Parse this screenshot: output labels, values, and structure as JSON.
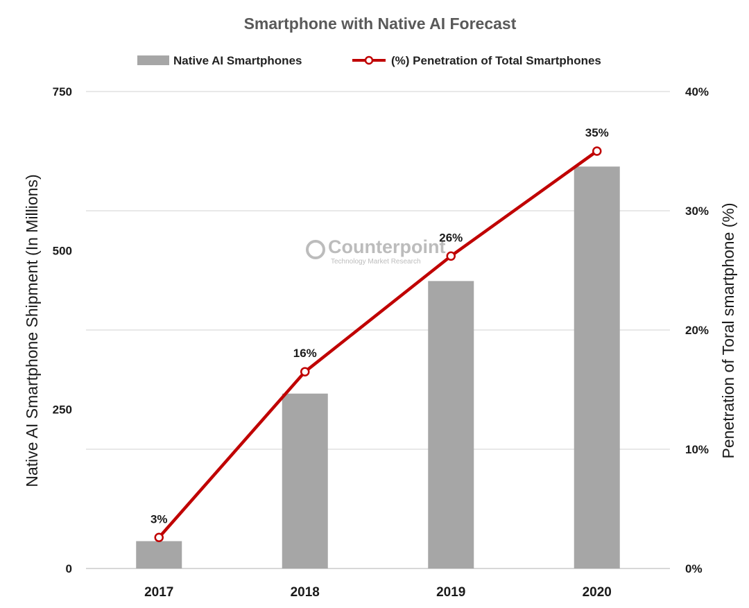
{
  "chart_data": {
    "type": "bar",
    "title": "Smartphone with Native AI Forecast",
    "categories": [
      "2017",
      "2018",
      "2019",
      "2020"
    ],
    "series": [
      {
        "name": "Native AI Smartphones",
        "type": "bar",
        "axis": "left",
        "values": [
          43,
          275,
          452,
          632
        ],
        "color": "#a6a6a6"
      },
      {
        "name": "(%) Penetration of Total Smartphones",
        "type": "line",
        "axis": "right",
        "values": [
          2.6,
          16.5,
          26.2,
          35.0
        ],
        "data_labels": [
          "3%",
          "16%",
          "26%",
          "35%"
        ],
        "color": "#c00000"
      }
    ],
    "ylabel": "Native AI Smartphone Shipment (In Millions)",
    "ylim": [
      0,
      750
    ],
    "yticks": [
      "0",
      "250",
      "500",
      "750"
    ],
    "y2label": "Penetration of Toral smartphone (%)",
    "y2lim": [
      0,
      40
    ],
    "y2ticks": [
      "0%",
      "10%",
      "20%",
      "30%",
      "40%"
    ],
    "grid": true,
    "legend": "top-center"
  },
  "watermark": {
    "name": "Counterpoint",
    "tagline": "Technology Market Research"
  }
}
